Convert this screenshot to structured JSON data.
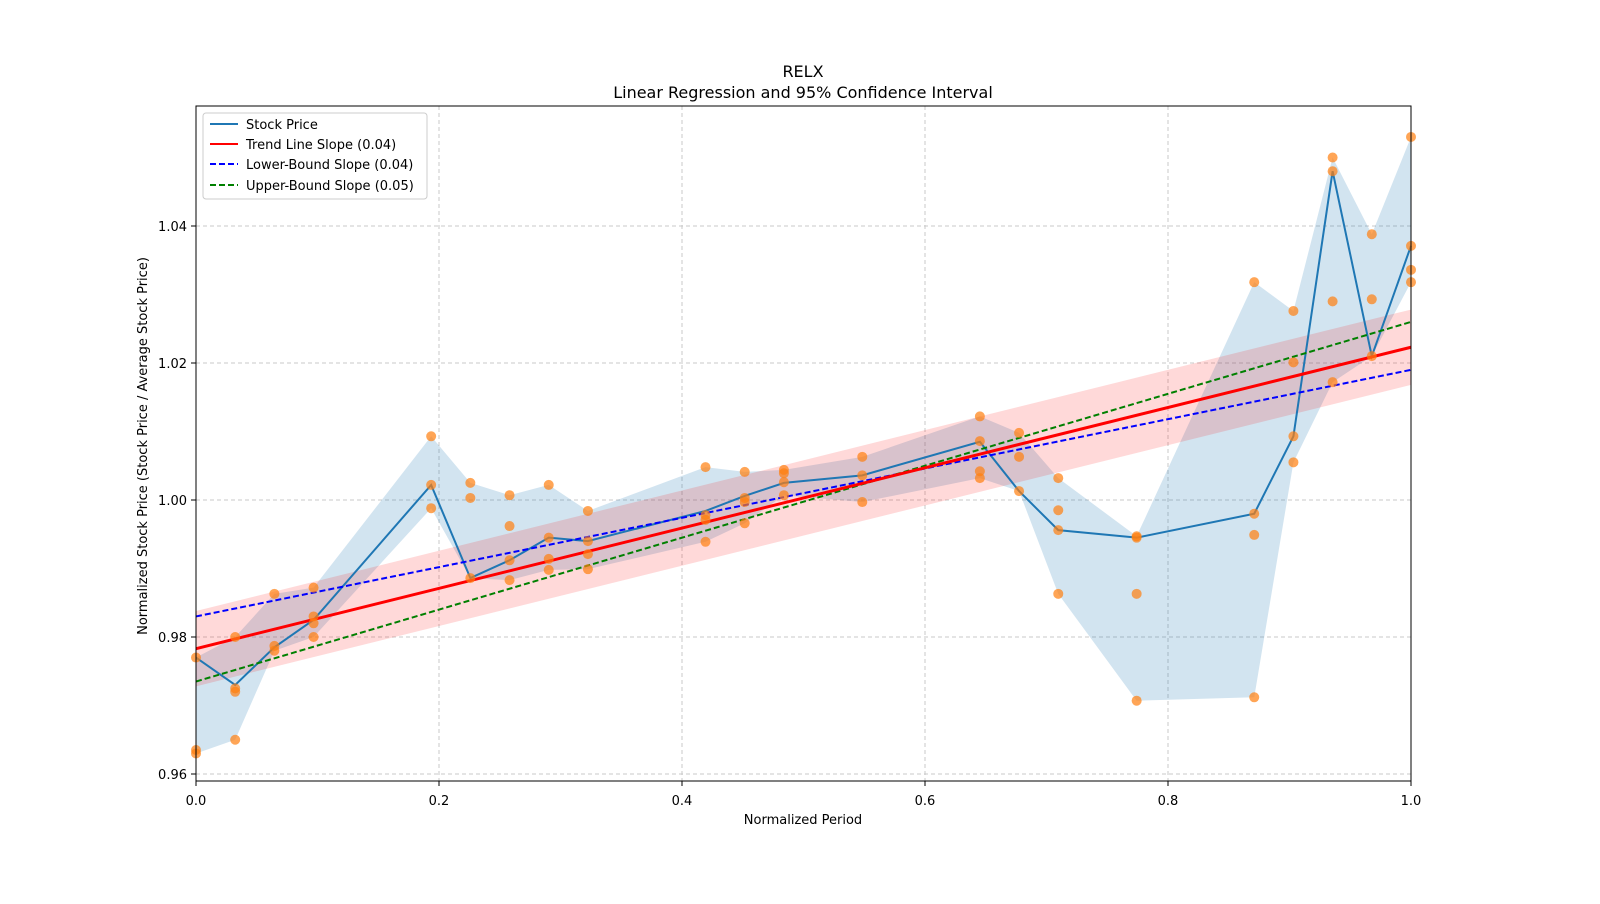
{
  "chart_data": {
    "type": "line",
    "title": "RELX",
    "subtitle": "Linear Regression and 95% Confidence Interval",
    "xlabel": "Normalized Period",
    "ylabel": "Normalized Stock Price (Stock Price / Average Stock Price)",
    "xlim": [
      0,
      1
    ],
    "ylim": [
      0.959,
      1.0575
    ],
    "xticks": [
      "0.0",
      "0.2",
      "0.4",
      "0.6",
      "0.8",
      "1.0"
    ],
    "yticks": [
      "0.96",
      "0.98",
      "1.00",
      "1.02",
      "1.04"
    ],
    "grid": true,
    "legend_position": "top-left",
    "legend": [
      {
        "label": "Stock Price",
        "color": "#1f77b4",
        "style": "solid"
      },
      {
        "label": "Trend Line Slope (0.04)",
        "color": "#ff0000",
        "style": "solid"
      },
      {
        "label": "Lower-Bound Slope (0.04)",
        "color": "#0000ff",
        "style": "dashed"
      },
      {
        "label": "Upper-Bound Slope (0.05)",
        "color": "#008000",
        "style": "dashed"
      }
    ],
    "x_index_divisor": 31,
    "series": [
      {
        "name": "Stock Price",
        "x_index": [
          0,
          1,
          2,
          3,
          6,
          7,
          8,
          9,
          10,
          13,
          14,
          15,
          17,
          20,
          21,
          22,
          24,
          27,
          28,
          29,
          30,
          31
        ],
        "values": [
          0.977,
          0.973,
          0.9785,
          0.9825,
          1.0022,
          0.9886,
          0.9912,
          0.9945,
          0.994,
          0.9984,
          1.0006,
          1.0025,
          1.0036,
          1.0085,
          1.0013,
          0.9956,
          0.9945,
          0.998,
          1.0093,
          1.048,
          1.021,
          1.0371
        ]
      }
    ],
    "scatter_points": [
      {
        "x_index": 0,
        "values": [
          0.977,
          0.9635,
          0.963
        ]
      },
      {
        "x_index": 1,
        "values": [
          0.98,
          0.9725,
          0.972,
          0.965
        ]
      },
      {
        "x_index": 2,
        "values": [
          0.9863,
          0.9787,
          0.978
        ]
      },
      {
        "x_index": 3,
        "values": [
          0.9872,
          0.983,
          0.982,
          0.98
        ]
      },
      {
        "x_index": 6,
        "values": [
          1.0093,
          1.0022,
          0.9988
        ]
      },
      {
        "x_index": 7,
        "values": [
          1.0025,
          1.0003,
          0.9886
        ]
      },
      {
        "x_index": 8,
        "values": [
          1.0007,
          0.9962,
          0.9912,
          0.9883
        ]
      },
      {
        "x_index": 9,
        "values": [
          1.0022,
          0.9945,
          0.9914,
          0.9898
        ]
      },
      {
        "x_index": 10,
        "values": [
          0.9984,
          0.994,
          0.9921,
          0.9899
        ]
      },
      {
        "x_index": 13,
        "values": [
          1.0048,
          0.9978,
          0.9971,
          0.9939
        ]
      },
      {
        "x_index": 14,
        "values": [
          1.0041,
          1.0003,
          0.9997,
          0.9966
        ]
      },
      {
        "x_index": 15,
        "values": [
          1.0044,
          1.0039,
          1.0026,
          1.0007
        ]
      },
      {
        "x_index": 17,
        "values": [
          1.0063,
          1.0036,
          0.9997
        ]
      },
      {
        "x_index": 20,
        "values": [
          1.0122,
          1.0086,
          1.0042,
          1.0032
        ]
      },
      {
        "x_index": 21,
        "values": [
          1.0098,
          1.0063,
          1.0013
        ]
      },
      {
        "x_index": 22,
        "values": [
          1.0032,
          0.9985,
          0.9956,
          0.9863
        ]
      },
      {
        "x_index": 24,
        "values": [
          0.9947,
          0.9945,
          0.9863,
          0.9707
        ]
      },
      {
        "x_index": 27,
        "values": [
          1.0318,
          0.998,
          0.9949,
          0.9712
        ]
      },
      {
        "x_index": 28,
        "values": [
          1.0276,
          1.0201,
          1.0093,
          1.0055
        ]
      },
      {
        "x_index": 29,
        "values": [
          1.05,
          1.048,
          1.029,
          1.0172
        ]
      },
      {
        "x_index": 30,
        "values": [
          1.0388,
          1.0293,
          1.021
        ]
      },
      {
        "x_index": 31,
        "values": [
          1.053,
          1.0371,
          1.0336,
          1.0318
        ]
      }
    ],
    "trend_line": {
      "x": [
        0,
        1
      ],
      "y": [
        0.9783,
        1.0223
      ],
      "ci_halfwidth": 0.0055
    },
    "lower_bound_line": {
      "x": [
        0,
        1
      ],
      "y": [
        0.983,
        1.019
      ]
    },
    "upper_bound_line": {
      "x": [
        0,
        1
      ],
      "y": [
        0.9735,
        1.026
      ]
    }
  }
}
